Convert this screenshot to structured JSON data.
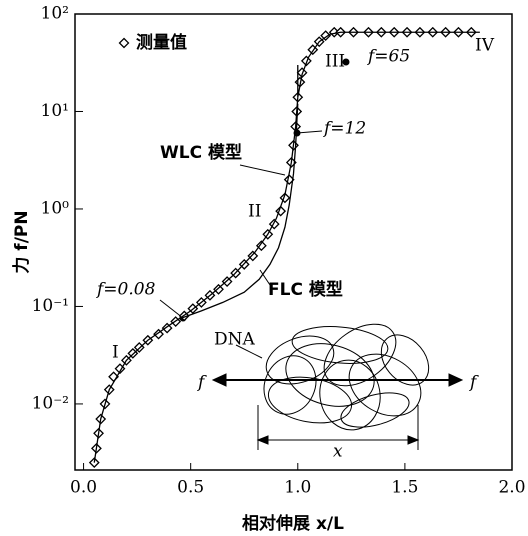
{
  "chart_data": {
    "type": "scatter",
    "x_label": "相对伸展 x/L",
    "y_label": "力 f/PN",
    "log_y": true,
    "xlim": [
      -0.04,
      2.0
    ],
    "ylim": [
      0.0021,
      100
    ],
    "xticks": [
      {
        "value": 0,
        "label": "0.0"
      },
      {
        "value": 0.5,
        "label": "0.5"
      },
      {
        "value": 1,
        "label": "1.0"
      },
      {
        "value": 1.5,
        "label": "1.5"
      },
      {
        "value": 2,
        "label": "2.0"
      }
    ],
    "yticks": [
      {
        "value": 0.01,
        "label": "10⁻²"
      },
      {
        "value": 0.1,
        "label": "10⁻¹"
      },
      {
        "value": 1,
        "label": "10⁰"
      },
      {
        "value": 10,
        "label": "10¹"
      },
      {
        "value": 100,
        "label": "10²"
      }
    ],
    "series": [
      {
        "name": "测量值",
        "type": "scatter",
        "color": "#000000",
        "x": [
          0.05,
          0.06,
          0.07,
          0.08,
          0.1,
          0.12,
          0.14,
          0.17,
          0.2,
          0.23,
          0.26,
          0.3,
          0.35,
          0.39,
          0.43,
          0.47,
          0.51,
          0.55,
          0.59,
          0.63,
          0.67,
          0.71,
          0.75,
          0.79,
          0.83,
          0.86,
          0.89,
          0.92,
          0.94,
          0.96,
          0.97,
          0.98,
          0.99,
          0.995,
          1.0,
          1.01,
          1.02,
          1.04,
          1.07,
          1.1,
          1.13,
          1.17,
          1.2,
          1.26,
          1.33,
          1.39,
          1.45,
          1.51,
          1.57,
          1.63,
          1.69,
          1.75,
          1.81
        ],
        "values": [
          0.0025,
          0.0035,
          0.005,
          0.007,
          0.01,
          0.014,
          0.019,
          0.023,
          0.028,
          0.033,
          0.038,
          0.045,
          0.052,
          0.06,
          0.07,
          0.08,
          0.095,
          0.11,
          0.13,
          0.15,
          0.18,
          0.22,
          0.27,
          0.33,
          0.42,
          0.55,
          0.7,
          0.95,
          1.3,
          2,
          3,
          4.5,
          7,
          10,
          14,
          20,
          25,
          33,
          43,
          52,
          60,
          65,
          65,
          65,
          65,
          65,
          65,
          65,
          65,
          65,
          65,
          65,
          65
        ]
      },
      {
        "name": "WLC 模型",
        "type": "line",
        "color": "#000000",
        "x": [
          0.05,
          0.08,
          0.12,
          0.2,
          0.3,
          0.4,
          0.5,
          0.6,
          0.7,
          0.8,
          0.86,
          0.9,
          0.94,
          0.97,
          0.99,
          1.0,
          1.0,
          1.0,
          1.02,
          1.05,
          1.1,
          1.15,
          1.2,
          1.4,
          1.6,
          1.85
        ],
        "values": [
          0.0025,
          0.007,
          0.014,
          0.028,
          0.045,
          0.064,
          0.09,
          0.135,
          0.21,
          0.36,
          0.55,
          0.8,
          1.4,
          3,
          7,
          14,
          30,
          14,
          24,
          36,
          52,
          62,
          65,
          65,
          65,
          65
        ]
      },
      {
        "name": "FLC 模型",
        "type": "line",
        "color": "#000000",
        "x": [
          0.45,
          0.55,
          0.65,
          0.75,
          0.82,
          0.87,
          0.91,
          0.94,
          0.96,
          0.98,
          0.99,
          1.0
        ],
        "values": [
          0.075,
          0.09,
          0.11,
          0.14,
          0.19,
          0.27,
          0.4,
          0.65,
          1.1,
          2.3,
          4.5,
          12
        ]
      }
    ],
    "annotations": [
      "f=65",
      "III",
      "IV",
      "f=12",
      "II",
      "f=0.08",
      "I",
      "DNA",
      "f",
      "f",
      "x"
    ]
  }
}
